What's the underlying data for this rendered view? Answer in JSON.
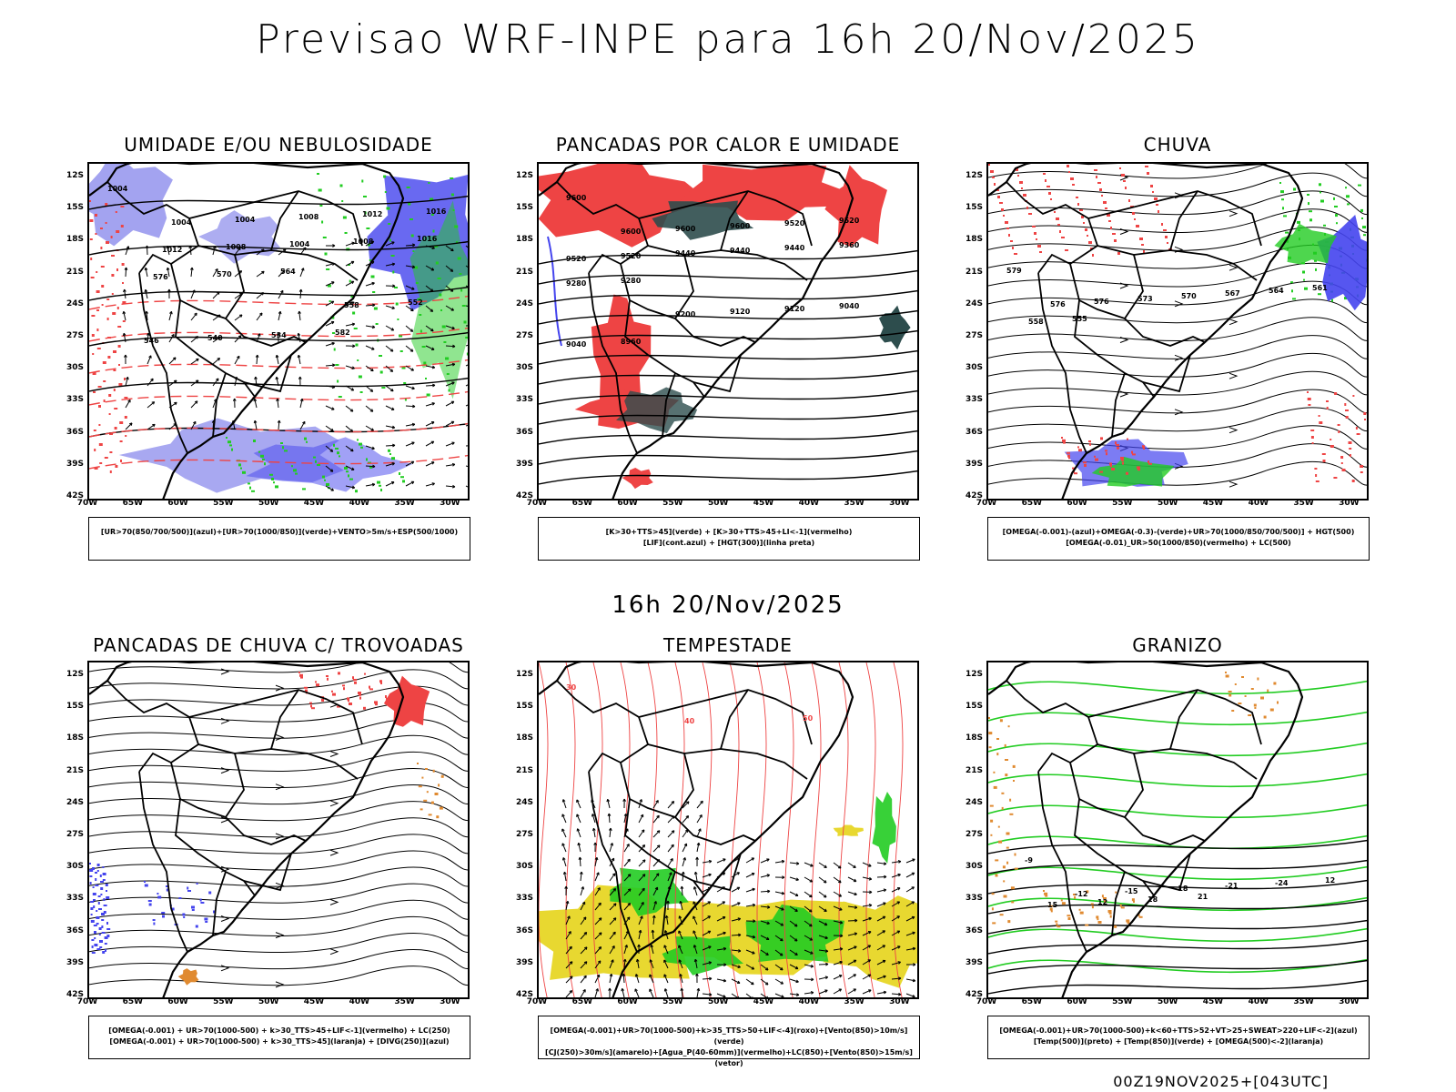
{
  "title": "Previsao WRF-INPE  para 16h 20/Nov/2025",
  "mid_time": "16h 20/Nov/2025",
  "run_id": "00Z19NOV2025+[043UTC]",
  "lat_ticks": [
    "12S",
    "15S",
    "18S",
    "21S",
    "24S",
    "27S",
    "30S",
    "33S",
    "36S",
    "39S",
    "42S"
  ],
  "lon_ticks": [
    "70W",
    "65W",
    "60W",
    "55W",
    "50W",
    "45W",
    "40W",
    "35W",
    "30W"
  ],
  "panels": [
    {
      "title": "UMIDADE E/OU NEBULOSIDADE",
      "legend_1": "[UR>70(850/700/500)](azul)+[UR>70(1000/850)](verde)+VENTO>5m/s+ESP(500/1000)",
      "legend_2": "",
      "labels": [
        "1004",
        "1004",
        "1004",
        "1008",
        "1012",
        "1016",
        "1012",
        "1008",
        "1004",
        "1008",
        "1016",
        "576",
        "570",
        "564",
        "558",
        "552",
        "546",
        "540",
        "534",
        "582"
      ]
    },
    {
      "title": "PANCADAS POR CALOR E UMIDADE",
      "legend_1": "[K>30+TTS>45](verde) + [K>30+TTS>45+LI<-1](vermelho)",
      "legend_2": "[LIF](cont.azul) + [HGT(300)](linha preta)",
      "labels": [
        "9600",
        "9600",
        "9600",
        "9600",
        "9520",
        "9520",
        "9520",
        "9520",
        "9440",
        "9440",
        "9440",
        "9360",
        "9280",
        "9280",
        "9200",
        "9120",
        "9120",
        "9040",
        "9040",
        "8960"
      ]
    },
    {
      "title": "CHUVA",
      "legend_1": "[OMEGA(-0.001)-(azul)+OMEGA(-0.3)-(verde)+UR>70(1000/850/700/500)] + HGT(500)",
      "legend_2": "[OMEGA(-0.01)_UR>50(1000/850)(vermelho) + LC(500)",
      "labels": [
        "579",
        "576",
        "576",
        "573",
        "570",
        "567",
        "564",
        "561",
        "558",
        "555"
      ]
    },
    {
      "title": "PANCADAS DE CHUVA C/ TROVOADAS",
      "legend_1": "[OMEGA(-0.001) + UR>70(1000-500) + k>30_TTS>45+LIF<-1](vermelho) + LC(250)",
      "legend_2": "[OMEGA(-0.001) + UR>70(1000-500) + k>30_TTS>45](laranja) + [DIVG(250)](azul)",
      "labels": []
    },
    {
      "title": "TEMPESTADE",
      "legend_1": "[OMEGA(-0.001)+UR>70(1000-500)+k>35_TTS>50+LIF<-4](roxo)+[Vento(850)>10m/s](verde)",
      "legend_2": "[CJ(250)>30m/s](amarelo)+[Agua_P(40-60mm)](vermelho)+LC(850)+[Vento(850)>15m/s](vetor)",
      "labels": [
        "30",
        "40",
        "50"
      ]
    },
    {
      "title": "GRANIZO",
      "legend_1": "[OMEGA(-0.001)+UR>70(1000-500)+k<60+TTS>52+VT>25+SWEAT>220+LIF<-2](azul)",
      "legend_2": "[Temp(500)](preto) + [Temp(850)](verde) + [OMEGA(500)<-2](laranja)",
      "labels": [
        "-9",
        "-12",
        "-15",
        "-18",
        "-21",
        "-24",
        "12",
        "15",
        "12",
        "18",
        "21"
      ]
    }
  ],
  "colors": {
    "red": "#ee4444",
    "blue": "#4444ee",
    "lightblue": "#9999ee",
    "green": "#22cc22",
    "darkteal": "#2d4d4d",
    "yellow": "#e8d830",
    "orange": "#e08a30"
  }
}
